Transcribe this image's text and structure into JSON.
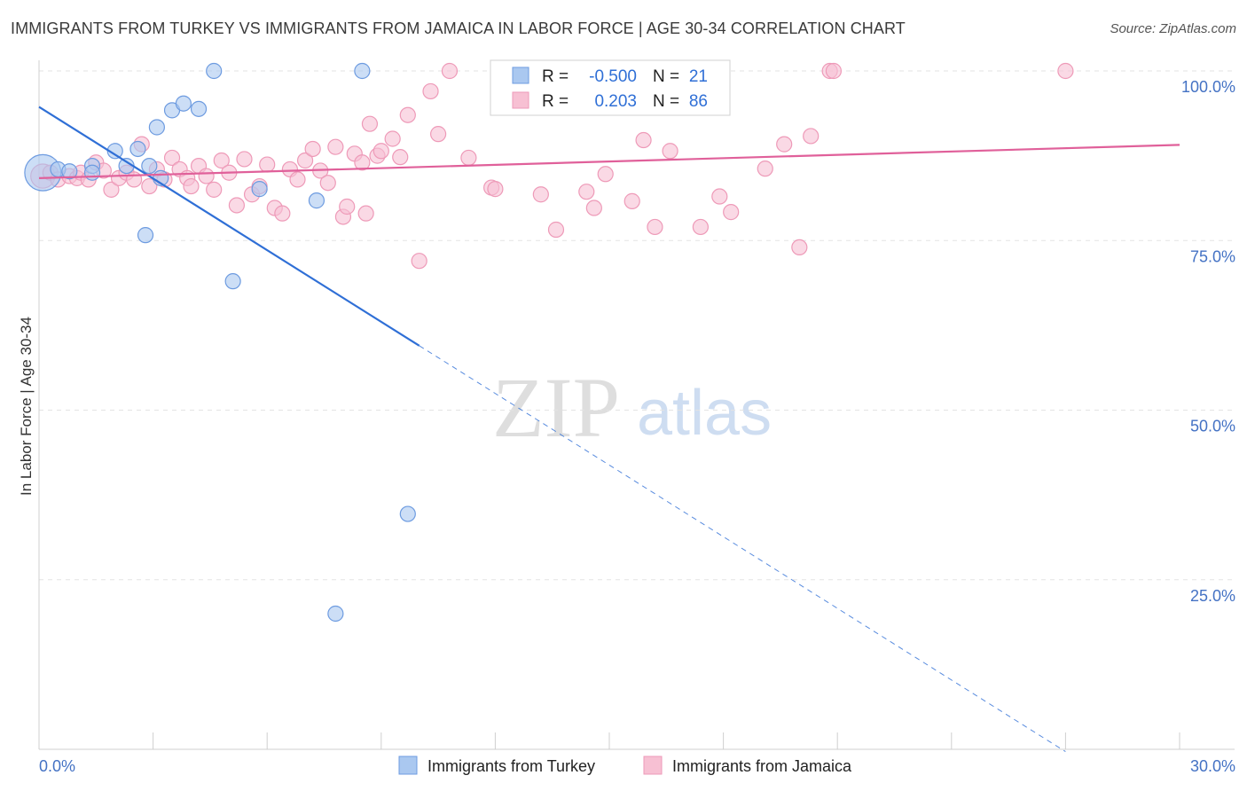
{
  "title": "IMMIGRANTS FROM TURKEY VS IMMIGRANTS FROM JAMAICA IN LABOR FORCE | AGE 30-34 CORRELATION CHART",
  "source": "Source: ZipAtlas.com",
  "watermark": {
    "zip": "ZIP",
    "atlas": "atlas"
  },
  "colors": {
    "turkey_fill": "#aac8f0",
    "turkey_stroke": "#6d9be0",
    "turkey_line": "#2f6fd6",
    "jamaica_fill": "#f7c0d3",
    "jamaica_stroke": "#ee9ab8",
    "jamaica_line": "#e0609a",
    "axis_label": "#4472c4"
  },
  "legend": {
    "rows": [
      {
        "r_label": "R =",
        "r_value": "-0.500",
        "n_label": "N =",
        "n_value": "21"
      },
      {
        "r_label": "R =",
        "r_value": "0.203",
        "n_label": "N =",
        "n_value": "86"
      }
    ]
  },
  "chart_data": {
    "type": "scatter",
    "title": "IMMIGRANTS FROM TURKEY VS IMMIGRANTS FROM JAMAICA IN LABOR FORCE | AGE 30-34 CORRELATION CHART",
    "xlabel": "",
    "ylabel": "In Labor Force | Age 30-34",
    "xlim": [
      0,
      30
    ],
    "ylim": [
      0,
      105
    ],
    "x_tick_labels": [
      "0.0%",
      "30.0%"
    ],
    "y_ticks": [
      25,
      50,
      75,
      100
    ],
    "y_tick_labels": [
      "25.0%",
      "50.0%",
      "75.0%",
      "100.0%"
    ],
    "grid": true,
    "legend_position": "top-center",
    "series": [
      {
        "name": "Immigrants from Turkey",
        "r": -0.5,
        "n": 21,
        "trend": {
          "x0": 0,
          "y0": 94.7,
          "x1": 10.0,
          "y1": 59.5,
          "dashed_to_x": 27.0
        },
        "points": [
          [
            0.1,
            85.0,
            24
          ],
          [
            0.5,
            85.5,
            10
          ],
          [
            0.8,
            85.2,
            10
          ],
          [
            1.4,
            86.0,
            10
          ],
          [
            1.4,
            85.0,
            10
          ],
          [
            2.0,
            88.2,
            10
          ],
          [
            2.3,
            86.0,
            10
          ],
          [
            2.6,
            88.5,
            10
          ],
          [
            2.8,
            75.8,
            10
          ],
          [
            2.9,
            86.0,
            10
          ],
          [
            3.1,
            91.7,
            10
          ],
          [
            3.2,
            84.2,
            10
          ],
          [
            3.5,
            94.2,
            10
          ],
          [
            3.8,
            95.2,
            10
          ],
          [
            4.2,
            94.4,
            10
          ],
          [
            4.6,
            100.0,
            10
          ],
          [
            5.1,
            69.0,
            10
          ],
          [
            5.8,
            82.6,
            10
          ],
          [
            7.3,
            80.9,
            10
          ],
          [
            7.8,
            20.0,
            10
          ],
          [
            8.5,
            100.0,
            10
          ],
          [
            9.7,
            34.7,
            10
          ]
        ]
      },
      {
        "name": "Immigrants from Jamaica",
        "r": 0.203,
        "n": 86,
        "trend": {
          "x0": 0,
          "y0": 84.2,
          "x1": 30,
          "y1": 89.1
        },
        "points": [
          [
            0.1,
            84.5,
            16
          ],
          [
            0.3,
            85.0,
            10
          ],
          [
            0.5,
            84.0,
            10
          ],
          [
            0.8,
            84.5,
            10
          ],
          [
            1.0,
            84.2,
            10
          ],
          [
            1.1,
            85.0,
            10
          ],
          [
            1.3,
            84.0,
            10
          ],
          [
            1.5,
            86.5,
            10
          ],
          [
            1.7,
            85.3,
            10
          ],
          [
            1.9,
            82.5,
            10
          ],
          [
            2.1,
            84.2,
            10
          ],
          [
            2.3,
            85.0,
            10
          ],
          [
            2.5,
            84.0,
            10
          ],
          [
            2.7,
            89.2,
            10
          ],
          [
            2.9,
            83.0,
            10
          ],
          [
            3.1,
            85.5,
            10
          ],
          [
            3.3,
            84.0,
            10
          ],
          [
            3.5,
            87.2,
            10
          ],
          [
            3.7,
            85.5,
            10
          ],
          [
            3.9,
            84.2,
            10
          ],
          [
            4.0,
            83.0,
            10
          ],
          [
            4.2,
            86.0,
            10
          ],
          [
            4.4,
            84.5,
            10
          ],
          [
            4.6,
            82.5,
            10
          ],
          [
            4.8,
            86.8,
            10
          ],
          [
            5.0,
            85.0,
            10
          ],
          [
            5.2,
            80.2,
            10
          ],
          [
            5.4,
            87.0,
            10
          ],
          [
            5.6,
            81.8,
            10
          ],
          [
            5.8,
            83.0,
            10
          ],
          [
            6.0,
            86.2,
            10
          ],
          [
            6.2,
            79.8,
            10
          ],
          [
            6.4,
            79.0,
            10
          ],
          [
            6.6,
            85.5,
            10
          ],
          [
            6.8,
            84.0,
            10
          ],
          [
            7.0,
            86.8,
            10
          ],
          [
            7.2,
            88.5,
            10
          ],
          [
            7.4,
            85.3,
            10
          ],
          [
            7.6,
            83.5,
            10
          ],
          [
            7.8,
            88.8,
            10
          ],
          [
            8.0,
            78.5,
            10
          ],
          [
            8.1,
            80.0,
            10
          ],
          [
            8.3,
            87.8,
            10
          ],
          [
            8.5,
            86.5,
            10
          ],
          [
            8.6,
            79.0,
            10
          ],
          [
            8.7,
            92.2,
            10
          ],
          [
            8.9,
            87.5,
            10
          ],
          [
            9.0,
            88.2,
            10
          ],
          [
            9.3,
            90.0,
            10
          ],
          [
            9.5,
            87.3,
            10
          ],
          [
            9.7,
            93.5,
            10
          ],
          [
            10.0,
            72.0,
            10
          ],
          [
            10.3,
            97.0,
            10
          ],
          [
            10.5,
            90.7,
            10
          ],
          [
            10.8,
            100.0,
            10
          ],
          [
            11.3,
            87.2,
            10
          ],
          [
            11.9,
            82.8,
            10
          ],
          [
            12.0,
            82.6,
            10
          ],
          [
            13.2,
            81.8,
            10
          ],
          [
            13.6,
            76.6,
            10
          ],
          [
            14.4,
            82.2,
            10
          ],
          [
            14.6,
            79.8,
            10
          ],
          [
            14.9,
            84.8,
            10
          ],
          [
            15.6,
            80.8,
            10
          ],
          [
            15.9,
            89.8,
            10
          ],
          [
            16.2,
            77.0,
            10
          ],
          [
            16.6,
            88.2,
            10
          ],
          [
            17.4,
            77.0,
            10
          ],
          [
            17.9,
            81.5,
            10
          ],
          [
            18.2,
            79.2,
            10
          ],
          [
            19.1,
            85.6,
            10
          ],
          [
            19.6,
            89.2,
            10
          ],
          [
            20.0,
            74.0,
            10
          ],
          [
            20.3,
            90.4,
            10
          ],
          [
            20.8,
            100.0,
            10
          ],
          [
            20.9,
            100.0,
            10
          ],
          [
            27.0,
            100.0,
            10
          ]
        ]
      }
    ]
  },
  "bottom_legend": [
    "Immigrants from Turkey",
    "Immigrants from Jamaica"
  ]
}
